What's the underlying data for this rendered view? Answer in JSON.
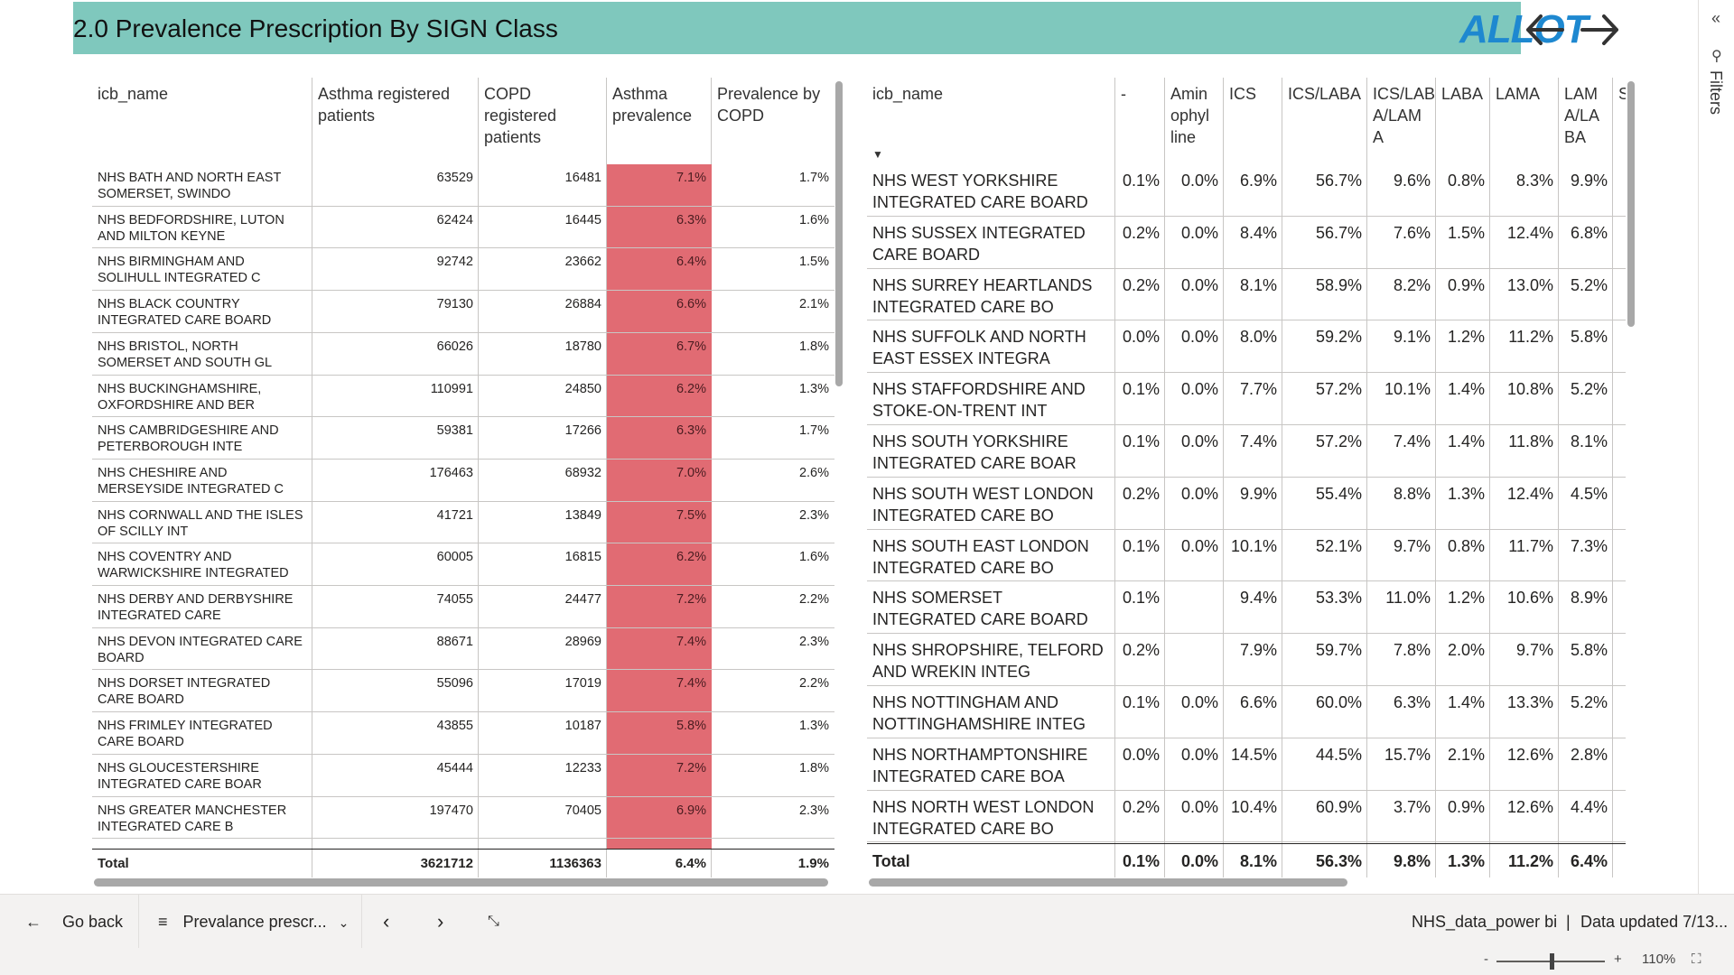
{
  "header": {
    "title": "2.0 Prevalence Prescription By SIGN Class",
    "logo_text": "ALLOT",
    "accent": "#7fc8bd"
  },
  "filters": {
    "label": "Filters"
  },
  "left_table": {
    "columns": [
      "icb_name",
      "Asthma registered patients",
      "COPD registered patients",
      "Asthma prevalence",
      "Prevalence by COPD"
    ],
    "rows": [
      [
        "NHS BATH AND NORTH EAST SOMERSET, SWINDO",
        "63529",
        "16481",
        "7.1%",
        "1.7%"
      ],
      [
        "NHS BEDFORDSHIRE, LUTON AND MILTON KEYNE",
        "62424",
        "16445",
        "6.3%",
        "1.6%"
      ],
      [
        "NHS BIRMINGHAM AND SOLIHULL INTEGRATED C",
        "92742",
        "23662",
        "6.4%",
        "1.5%"
      ],
      [
        "NHS BLACK COUNTRY INTEGRATED CARE BOARD",
        "79130",
        "26884",
        "6.6%",
        "2.1%"
      ],
      [
        "NHS BRISTOL, NORTH SOMERSET AND SOUTH GL",
        "66026",
        "18780",
        "6.7%",
        "1.8%"
      ],
      [
        "NHS BUCKINGHAMSHIRE, OXFORDSHIRE AND BER",
        "110991",
        "24850",
        "6.2%",
        "1.3%"
      ],
      [
        "NHS CAMBRIDGESHIRE AND PETERBOROUGH INTE",
        "59381",
        "17266",
        "6.3%",
        "1.7%"
      ],
      [
        "NHS CHESHIRE AND MERSEYSIDE INTEGRATED C",
        "176463",
        "68932",
        "7.0%",
        "2.6%"
      ],
      [
        "NHS CORNWALL AND THE ISLES OF SCILLY INT",
        "41721",
        "13849",
        "7.5%",
        "2.3%"
      ],
      [
        "NHS COVENTRY AND WARWICKSHIRE INTEGRATED",
        "60005",
        "16815",
        "6.2%",
        "1.6%"
      ],
      [
        "NHS DERBY AND DERBYSHIRE INTEGRATED CARE",
        "74055",
        "24477",
        "7.2%",
        "2.2%"
      ],
      [
        "NHS DEVON INTEGRATED CARE BOARD",
        "88671",
        "28969",
        "7.4%",
        "2.3%"
      ],
      [
        "NHS DORSET INTEGRATED CARE BOARD",
        "55096",
        "17019",
        "7.4%",
        "2.2%"
      ],
      [
        "NHS FRIMLEY INTEGRATED CARE BOARD",
        "43855",
        "10187",
        "5.8%",
        "1.3%"
      ],
      [
        "NHS GLOUCESTERSHIRE INTEGRATED CARE BOAR",
        "45444",
        "12233",
        "7.2%",
        "1.8%"
      ],
      [
        "NHS GREATER MANCHESTER INTEGRATED CARE B",
        "197470",
        "70405",
        "6.9%",
        "2.3%"
      ]
    ],
    "total": [
      "Total",
      "3621712",
      "1136363",
      "6.4%",
      "1.9%"
    ],
    "highlight_color": "#e16b73"
  },
  "right_table": {
    "columns": [
      "icb_name",
      "-",
      "Aminophylline",
      "ICS",
      "ICS/LABA",
      "ICS/LABA/LAMA",
      "LABA",
      "LAMA",
      "LAMA/LABA"
    ],
    "header_display": [
      "icb_name",
      "-",
      "Amin ophyl line",
      "ICS",
      "ICS/LABA",
      "ICS/LAB A/LAM A",
      "LABA",
      "LAMA",
      "LAM A/LA BA"
    ],
    "rows": [
      [
        "NHS WEST YORKSHIRE INTEGRATED CARE BOARD",
        "0.1%",
        "0.0%",
        "6.9%",
        "56.7%",
        "9.6%",
        "0.8%",
        "8.3%",
        "9.9%"
      ],
      [
        "NHS SUSSEX INTEGRATED CARE BOARD",
        "0.2%",
        "0.0%",
        "8.4%",
        "56.7%",
        "7.6%",
        "1.5%",
        "12.4%",
        "6.8%"
      ],
      [
        "NHS SURREY HEARTLANDS INTEGRATED CARE BO",
        "0.2%",
        "0.0%",
        "8.1%",
        "58.9%",
        "8.2%",
        "0.9%",
        "13.0%",
        "5.2%"
      ],
      [
        "NHS SUFFOLK AND NORTH EAST ESSEX INTEGRA",
        "0.0%",
        "0.0%",
        "8.0%",
        "59.2%",
        "9.1%",
        "1.2%",
        "11.2%",
        "5.8%"
      ],
      [
        "NHS STAFFORDSHIRE AND STOKE-ON-TRENT INT",
        "0.1%",
        "0.0%",
        "7.7%",
        "57.2%",
        "10.1%",
        "1.4%",
        "10.8%",
        "5.2%"
      ],
      [
        "NHS SOUTH YORKSHIRE INTEGRATED CARE BOAR",
        "0.1%",
        "0.0%",
        "7.4%",
        "57.2%",
        "7.4%",
        "1.4%",
        "11.8%",
        "8.1%"
      ],
      [
        "NHS SOUTH WEST LONDON INTEGRATED CARE BO",
        "0.2%",
        "0.0%",
        "9.9%",
        "55.4%",
        "8.8%",
        "1.3%",
        "12.4%",
        "4.5%"
      ],
      [
        "NHS SOUTH EAST LONDON INTEGRATED CARE BO",
        "0.1%",
        "0.0%",
        "10.1%",
        "52.1%",
        "9.7%",
        "0.8%",
        "11.7%",
        "7.3%"
      ],
      [
        "NHS SOMERSET INTEGRATED CARE BOARD",
        "0.1%",
        "",
        "9.4%",
        "53.3%",
        "11.0%",
        "1.2%",
        "10.6%",
        "8.9%"
      ],
      [
        "NHS SHROPSHIRE, TELFORD AND WREKIN INTEG",
        "0.2%",
        "",
        "7.9%",
        "59.7%",
        "7.8%",
        "2.0%",
        "9.7%",
        "5.8%"
      ],
      [
        "NHS NOTTINGHAM AND NOTTINGHAMSHIRE INTEG",
        "0.1%",
        "0.0%",
        "6.6%",
        "60.0%",
        "6.3%",
        "1.4%",
        "13.3%",
        "5.2%"
      ],
      [
        "NHS NORTHAMPTONSHIRE INTEGRATED CARE BOA",
        "0.0%",
        "0.0%",
        "14.5%",
        "44.5%",
        "15.7%",
        "2.1%",
        "12.6%",
        "2.8%"
      ],
      [
        "NHS NORTH WEST LONDON INTEGRATED CARE BO",
        "0.2%",
        "0.0%",
        "10.4%",
        "60.9%",
        "3.7%",
        "0.9%",
        "12.6%",
        "4.4%"
      ]
    ],
    "total": [
      "Total",
      "0.1%",
      "0.0%",
      "8.1%",
      "56.3%",
      "9.8%",
      "1.3%",
      "11.2%",
      "6.4%"
    ]
  },
  "bottom_bar": {
    "go_back": "Go back",
    "page_select": "Prevalance prescr...",
    "source": "NHS_data_power bi",
    "updated": "Data updated 7/13..."
  },
  "status": {
    "zoom": "110%",
    "zoom_level": 0.5
  }
}
